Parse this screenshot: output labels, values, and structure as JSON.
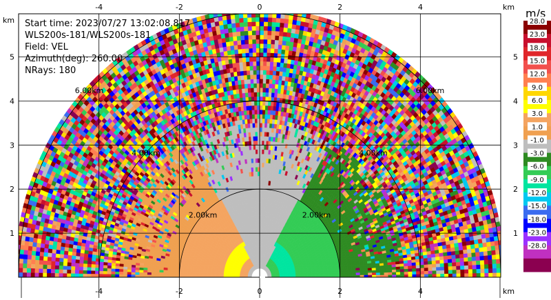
{
  "chart_data": {
    "type": "heatmap",
    "projection": "polar-rhi",
    "info": {
      "start_time": "Start time: 2023/07/27 13:02:08.817",
      "instrument": "WLS200s-181/WLS200s-181",
      "field": "Field: VEL",
      "azimuth": "Azimuth(deg): 260.00",
      "nrays": "NRays: 180"
    },
    "x_axis": {
      "ticks": [
        -4,
        -2,
        0,
        2,
        4
      ],
      "unit_label": "km",
      "xlim": [
        -6.0,
        6.0
      ]
    },
    "y_axis": {
      "ticks": [
        1,
        2,
        3,
        4,
        5
      ],
      "unit_label": "km",
      "ylim": [
        0,
        6.0
      ]
    },
    "max_range_km": 6.0,
    "range_rings_km": [
      2,
      4,
      6
    ],
    "range_ring_labels": [
      "2.00km",
      "4.00km",
      "6.00km"
    ],
    "grid": true,
    "colorbar": {
      "units": "m/s",
      "boundaries": [
        "28.0",
        "23.0",
        "18.0",
        "15.0",
        "12.0",
        "9.0",
        "6.0",
        "3.0",
        "1.0",
        "-1.0",
        "-3.0",
        "-6.0",
        "-9.0",
        "-12.0",
        "-15.0",
        "-18.0",
        "-23.0",
        "-28.0"
      ],
      "colors": [
        "#8b0000",
        "#c8102e",
        "#e0262a",
        "#f2504d",
        "#ff7f50",
        "#ffd700",
        "#ffff00",
        "#f4a460",
        "#f0a050",
        "#bebebe",
        "#2e8b22",
        "#33cc55",
        "#00e5a0",
        "#00c8f0",
        "#3a6cf0",
        "#0000ff",
        "#9b30ff",
        "#c030c0",
        "#8b0050"
      ]
    },
    "data_regions": [
      {
        "name": "near-left-outbound",
        "range_km": [
          0.3,
          2.0
        ],
        "azimuth_deg": [
          118,
          180
        ],
        "value": 4.5
      },
      {
        "name": "near-right-inbound",
        "range_km": [
          0.3,
          2.0
        ],
        "azimuth_deg": [
          0,
          62
        ],
        "value": -5.0
      },
      {
        "name": "near-zenith-calm",
        "range_km": [
          0.0,
          2.0
        ],
        "azimuth_deg": [
          62,
          118
        ],
        "value": 0.0
      },
      {
        "name": "mid-left",
        "range_km": [
          2.0,
          3.6
        ],
        "azimuth_deg": [
          120,
          180
        ],
        "value": 2.0
      },
      {
        "name": "mid-right",
        "range_km": [
          2.0,
          3.6
        ],
        "azimuth_deg": [
          0,
          60
        ],
        "value": -2.0
      },
      {
        "name": "far-noise",
        "range_km": [
          3.6,
          6.0
        ],
        "azimuth_deg": [
          0,
          180
        ],
        "value": null
      }
    ]
  }
}
